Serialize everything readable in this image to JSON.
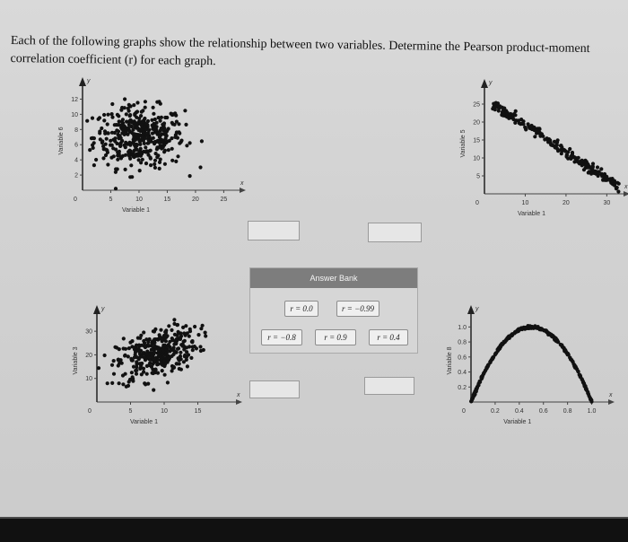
{
  "question": {
    "text": "Each of the following graphs show the relationship between two variables. Determine the Pearson product-moment correlation coefficient (r) for each graph."
  },
  "answer_bank": {
    "title": "Answer Bank",
    "options": [
      "r = 0.0",
      "r = −0.99",
      "r = −0.8",
      "r = 0.9",
      "r = 0.4"
    ]
  },
  "chart_data": [
    {
      "type": "scatter",
      "title": "",
      "xlabel": "Variable 1",
      "ylabel": "Variable 6",
      "axis_letters": {
        "x": "x",
        "y": "y"
      },
      "xticks": [
        "0",
        "5",
        "10",
        "15",
        "20",
        "25"
      ],
      "yticks": [
        "2",
        "4",
        "6",
        "8",
        "10",
        "12"
      ],
      "xlim": [
        0,
        27
      ],
      "ylim": [
        0,
        13
      ],
      "pattern": "round cloud, no trend",
      "center": [
        10,
        7
      ],
      "spread": [
        4,
        2
      ]
    },
    {
      "type": "scatter",
      "title": "",
      "xlabel": "Variable 1",
      "ylabel": "Variable 5",
      "axis_letters": {
        "x": "x",
        "y": "y"
      },
      "xticks": [
        "0",
        "10",
        "20",
        "30"
      ],
      "yticks": [
        "5",
        "10",
        "15",
        "20",
        "25"
      ],
      "xlim": [
        0,
        33
      ],
      "ylim": [
        0,
        28
      ],
      "pattern": "tight negative line",
      "line": {
        "x_start": 2,
        "y_start": 25,
        "x_end": 33,
        "y_end": 2
      }
    },
    {
      "type": "scatter",
      "title": "",
      "xlabel": "Variable 1",
      "ylabel": "Variable 3",
      "axis_letters": {
        "x": "x",
        "y": "y"
      },
      "xticks": [
        "0",
        "5",
        "10",
        "15"
      ],
      "yticks": [
        "10",
        "20",
        "30"
      ],
      "xlim": [
        0,
        20
      ],
      "ylim": [
        0,
        35
      ],
      "pattern": "positive-leaning cloud",
      "center": [
        9,
        21
      ],
      "spread": [
        3,
        6
      ]
    },
    {
      "type": "scatter",
      "title": "",
      "xlabel": "Variable 1",
      "ylabel": "Variable 8",
      "axis_letters": {
        "x": "x",
        "y": "y"
      },
      "xticks": [
        "0",
        "0.2",
        "0.4",
        "0.6",
        "0.8",
        "1.0"
      ],
      "yticks": [
        "0.2",
        "0.4",
        "0.6",
        "0.8",
        "1.0"
      ],
      "xlim": [
        0,
        1.1
      ],
      "ylim": [
        0,
        1.1
      ],
      "pattern": "inverted parabola",
      "curve": "y = 4x(1-x)"
    }
  ]
}
